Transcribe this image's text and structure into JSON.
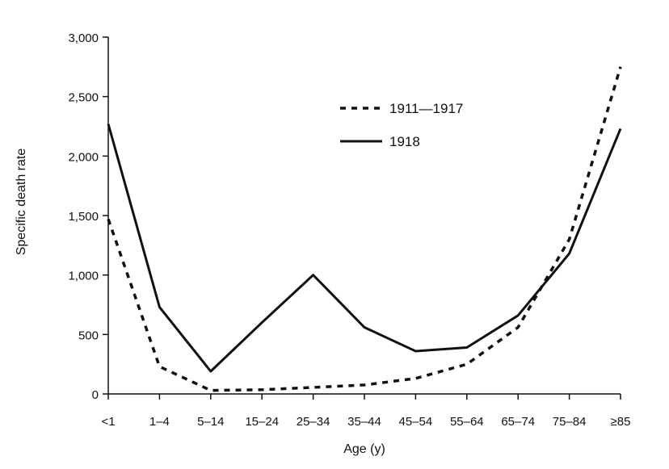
{
  "chart_data": {
    "type": "line",
    "xlabel": "Age (y)",
    "ylabel": "Specific death rate",
    "categories": [
      "<1",
      "1–4",
      "5–14",
      "15–24",
      "25–34",
      "35–44",
      "45–54",
      "55–64",
      "65–74",
      "75–84",
      "≥85"
    ],
    "ylim": [
      0,
      3000
    ],
    "yticks": [
      0,
      500,
      1000,
      1500,
      2000,
      2500,
      3000
    ],
    "ytick_labels": [
      "0",
      "500",
      "1,000",
      "1,500",
      "2,000",
      "2,500",
      "3,000"
    ],
    "grid": false,
    "legend_position": "upper-center",
    "series": [
      {
        "name": "1911—1917",
        "style": "dashed",
        "color": "#111111",
        "values": [
          1470,
          230,
          30,
          35,
          55,
          75,
          130,
          250,
          560,
          1300,
          2750
        ]
      },
      {
        "name": "1918",
        "style": "solid",
        "color": "#111111",
        "values": [
          2270,
          730,
          190,
          600,
          1000,
          560,
          360,
          390,
          660,
          1180,
          2230
        ]
      }
    ]
  }
}
